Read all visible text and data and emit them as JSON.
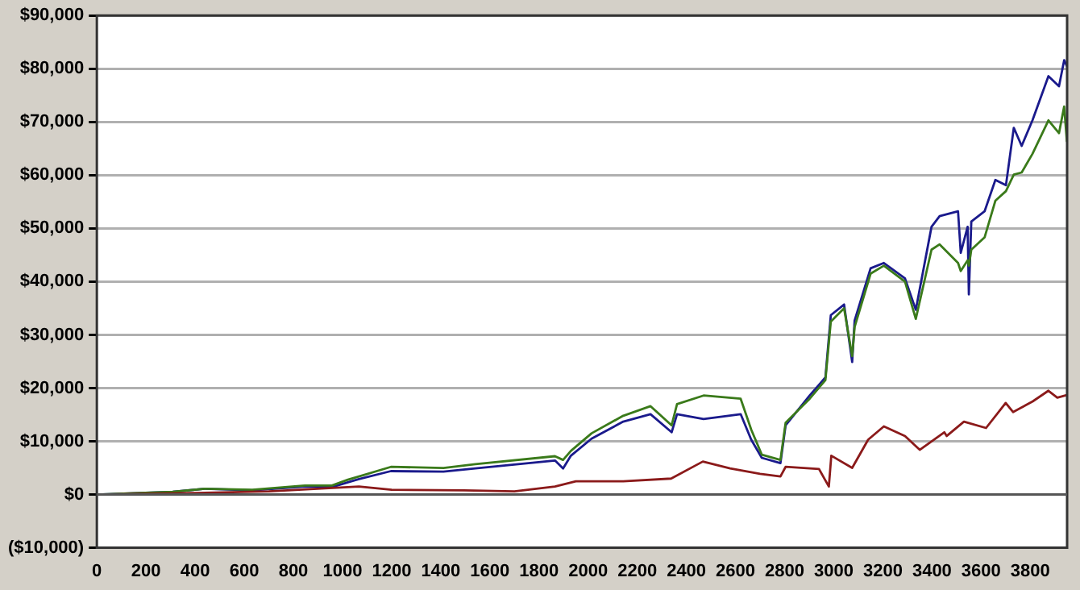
{
  "chart_data": {
    "type": "line",
    "x": [
      0,
      309,
      439,
      633,
      847,
      957,
      1022,
      1067,
      1197,
      1411,
      1541,
      1865,
      1898,
      1930,
      2014,
      2143,
      2254,
      2340,
      2362,
      2470,
      2621,
      2664,
      2707,
      2783,
      2804,
      2902,
      2966,
      2988,
      3042,
      3075,
      3085,
      3150,
      3204,
      3290,
      3334,
      3398,
      3431,
      3506,
      3517,
      3545,
      3550,
      3560,
      3614,
      3658,
      3701,
      3733,
      3765,
      3809,
      3874,
      3917,
      3938,
      3949
    ],
    "series": [
      {
        "color": "#8b1a1a",
        "x": [
          0,
          400,
          700,
          1067,
          1200,
          1495,
          1700,
          1865,
          1950,
          2143,
          2338,
          2467,
          2578,
          2700,
          2783,
          2804,
          2940,
          2980,
          2990,
          3075,
          3140,
          3204,
          3290,
          3350,
          3450,
          3460,
          3530,
          3620,
          3700,
          3730,
          3810,
          3874,
          3910,
          3949
        ],
        "values": [
          0,
          300,
          600,
          1500,
          900,
          800,
          600,
          1500,
          2500,
          2500,
          3000,
          6200,
          4900,
          3900,
          3400,
          5200,
          4800,
          1500,
          7300,
          5000,
          10300,
          12800,
          11000,
          8400,
          11700,
          11000,
          13700,
          12500,
          17200,
          15500,
          17500,
          19500,
          18200,
          18700
        ]
      },
      {
        "color": "#3a7a1a",
        "values": [
          0,
          500,
          1100,
          900,
          1700,
          1700,
          2800,
          3400,
          5200,
          5000,
          5700,
          7200,
          6500,
          8200,
          11500,
          14800,
          16600,
          13000,
          17000,
          18600,
          18000,
          12200,
          7500,
          6500,
          13500,
          18000,
          21500,
          32500,
          35000,
          26000,
          31500,
          41500,
          43000,
          40000,
          33000,
          46000,
          47000,
          43500,
          42000,
          44000,
          43000,
          46000,
          48300,
          55200,
          57000,
          60100,
          60500,
          64000,
          70300,
          67900,
          72900,
          66400
        ]
      },
      {
        "color": "#1a1a8c",
        "values": [
          0,
          500,
          1100,
          800,
          1500,
          1400,
          2300,
          2900,
          4400,
          4300,
          4900,
          6400,
          4900,
          7300,
          10500,
          13700,
          15100,
          11700,
          15100,
          14200,
          15100,
          10300,
          6900,
          5900,
          13000,
          18600,
          22000,
          33700,
          35700,
          24900,
          32700,
          42500,
          43500,
          40600,
          34700,
          50300,
          52300,
          53200,
          45400,
          50300,
          37600,
          51300,
          53200,
          59100,
          58100,
          68900,
          65500,
          70300,
          78600,
          76700,
          81600,
          80500
        ]
      }
    ],
    "xlim": [
      0,
      3950
    ],
    "xticks": [
      0,
      200,
      400,
      600,
      800,
      1000,
      1200,
      1400,
      1600,
      1800,
      2000,
      2200,
      2400,
      2600,
      2800,
      3000,
      3200,
      3400,
      3600,
      3800
    ],
    "ylim": [
      -10000,
      90000
    ],
    "yticks": [
      {
        "value": -10000,
        "label": "($10,000)"
      },
      {
        "value": 0,
        "label": "$0"
      },
      {
        "value": 10000,
        "label": "$10,000"
      },
      {
        "value": 20000,
        "label": "$20,000"
      },
      {
        "value": 30000,
        "label": "$30,000"
      },
      {
        "value": 40000,
        "label": "$40,000"
      },
      {
        "value": 50000,
        "label": "$50,000"
      },
      {
        "value": 60000,
        "label": "$60,000"
      },
      {
        "value": 70000,
        "label": "$70,000"
      },
      {
        "value": 80000,
        "label": "$80,000"
      },
      {
        "value": 90000,
        "label": "$90,000"
      }
    ],
    "grid": "y",
    "legend": false,
    "marker": "none",
    "line_style": "solid"
  }
}
